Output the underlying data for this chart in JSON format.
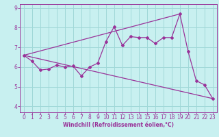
{
  "xlabel": "Windchill (Refroidissement éolien,°C)",
  "bg_color": "#c8f0f0",
  "line_color": "#993399",
  "xlim": [
    -0.5,
    23.5
  ],
  "ylim": [
    3.7,
    9.2
  ],
  "yticks": [
    4,
    5,
    6,
    7,
    8,
    9
  ],
  "xticks": [
    0,
    1,
    2,
    3,
    4,
    5,
    6,
    7,
    8,
    9,
    10,
    11,
    12,
    13,
    14,
    15,
    16,
    17,
    18,
    19,
    20,
    21,
    22,
    23
  ],
  "series1_x": [
    0,
    1,
    2,
    3,
    4,
    5,
    6,
    7,
    8,
    9,
    10,
    11,
    12,
    13,
    14,
    15,
    16,
    17,
    18,
    19,
    20,
    21,
    22,
    23
  ],
  "series1_y": [
    6.6,
    6.3,
    5.85,
    5.9,
    6.1,
    6.0,
    6.05,
    5.55,
    6.0,
    6.2,
    7.3,
    8.05,
    7.1,
    7.55,
    7.5,
    7.5,
    7.2,
    7.5,
    7.5,
    8.7,
    6.8,
    5.3,
    5.1,
    4.4
  ],
  "series2_x": [
    0,
    19
  ],
  "series2_y": [
    6.6,
    8.7
  ],
  "series3_x": [
    0,
    23
  ],
  "series3_y": [
    6.6,
    4.4
  ],
  "grid_color": "#a0d8d8",
  "label_fontsize": 5.5,
  "tick_fontsize": 5.5
}
